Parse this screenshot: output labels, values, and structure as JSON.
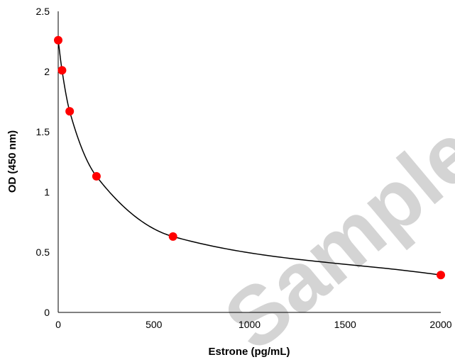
{
  "chart_data": {
    "type": "scatter",
    "title": "",
    "xlabel": "Estrone (pg/mL)",
    "ylabel": "OD (450 nm)",
    "xlim": [
      0,
      2000
    ],
    "ylim": [
      0,
      2.5
    ],
    "x_ticks": [
      "0",
      "500",
      "1000",
      "1500",
      "2000"
    ],
    "y_ticks": [
      "0",
      "0.5",
      "1",
      "1.5",
      "2",
      "2.5"
    ],
    "grid": false,
    "legend": "none",
    "points": [
      {
        "x": 0,
        "y": 2.26
      },
      {
        "x": 20,
        "y": 2.01
      },
      {
        "x": 60,
        "y": 1.67
      },
      {
        "x": 200,
        "y": 1.13
      },
      {
        "x": 600,
        "y": 0.63
      },
      {
        "x": 2000,
        "y": 0.31
      }
    ],
    "curve": "smooth fitted line through points",
    "marker_color": "#ff0000",
    "curve_color": "#000000"
  },
  "watermark": {
    "text": "Sample",
    "color": "#d4d4d4"
  }
}
